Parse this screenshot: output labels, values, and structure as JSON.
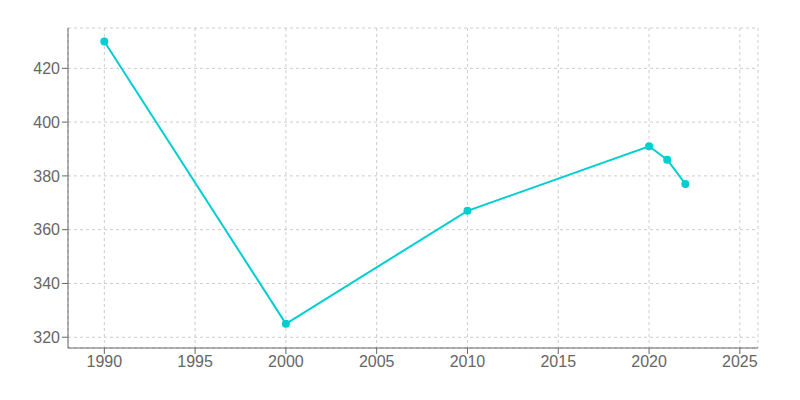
{
  "chart_data": {
    "type": "line",
    "x": [
      1990,
      2000,
      2010,
      2020,
      2021,
      2022
    ],
    "values": [
      430,
      325,
      367,
      391,
      386,
      377
    ],
    "color": "#00CED1",
    "marker": "circle",
    "line_style": "solid",
    "xlim": [
      1988,
      2026
    ],
    "xticks": [
      1990,
      1995,
      2000,
      2005,
      2010,
      2015,
      2020,
      2025
    ],
    "ylim": [
      316,
      435
    ],
    "yticks": [
      320,
      340,
      360,
      380,
      400,
      420
    ],
    "grid": true
  }
}
